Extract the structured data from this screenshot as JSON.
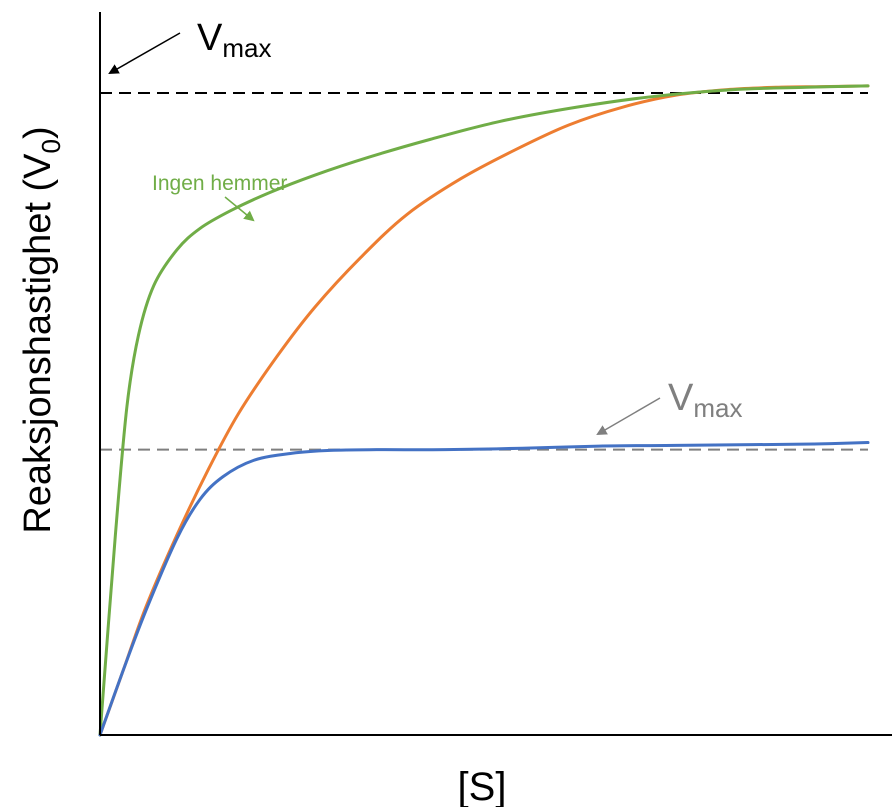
{
  "chart_data": {
    "type": "line",
    "title": "",
    "xlabel": "[S]",
    "ylabel_main": "Reaksjonshastighet (V",
    "ylabel_sub": "0",
    "ylabel_close": ")",
    "xlim": [
      0,
      10
    ],
    "ylim": [
      0,
      10
    ],
    "grid": false,
    "colors": {
      "green": "#70AD47",
      "orange": "#ED7D31",
      "blue": "#4472C4",
      "vmax_top_line": "#000000",
      "vmax_low_line": "#7F7F7F",
      "axis": "#000000"
    },
    "reference_lines": [
      {
        "name": "Vmax",
        "y": 9.0,
        "color": "#000000"
      },
      {
        "name": "Vmax",
        "y": 4.0,
        "color": "#7F7F7F"
      }
    ],
    "series": [
      {
        "name": "Ingen hemmer",
        "color": "#70AD47",
        "x": [
          0,
          0.2,
          0.35,
          0.5,
          0.7,
          1.0,
          1.3,
          1.7,
          2.2,
          2.8,
          3.5,
          4.3,
          5.2,
          6.2,
          7.2,
          8.3,
          9.2,
          10.0
        ],
        "y": [
          0,
          2.8,
          4.6,
          5.6,
          6.3,
          6.8,
          7.1,
          7.35,
          7.6,
          7.85,
          8.1,
          8.35,
          8.6,
          8.8,
          8.95,
          9.05,
          9.08,
          9.1
        ]
      },
      {
        "series_color_note": "",
        "color": "#ED7D31",
        "x": [
          0,
          0.3,
          0.6,
          1.0,
          1.4,
          1.8,
          2.3,
          2.8,
          3.4,
          4.0,
          4.7,
          5.4,
          6.1,
          6.8,
          7.5,
          8.2,
          8.8,
          9.4,
          10.0
        ],
        "y": [
          0,
          0.9,
          1.8,
          2.8,
          3.7,
          4.5,
          5.3,
          6.0,
          6.7,
          7.3,
          7.8,
          8.2,
          8.55,
          8.8,
          8.97,
          9.05,
          9.08,
          9.09,
          9.1
        ]
      },
      {
        "color": "#4472C4",
        "x": [
          0,
          0.3,
          0.6,
          1.0,
          1.3,
          1.6,
          2.0,
          2.5,
          3.0,
          3.6,
          4.5,
          5.5,
          6.5,
          7.5,
          8.5,
          9.3,
          10.0
        ],
        "y": [
          0,
          0.9,
          1.75,
          2.75,
          3.3,
          3.62,
          3.85,
          3.95,
          3.99,
          4.0,
          4.0,
          4.02,
          4.05,
          4.06,
          4.07,
          4.08,
          4.1
        ]
      }
    ],
    "annotations": [
      {
        "label": "V",
        "sub": "max",
        "color": "#000000"
      },
      {
        "label": "V",
        "sub": "max",
        "color": "#7F7F7F"
      },
      {
        "label": "Ingen hemmer",
        "color": "#70AD47"
      }
    ]
  }
}
